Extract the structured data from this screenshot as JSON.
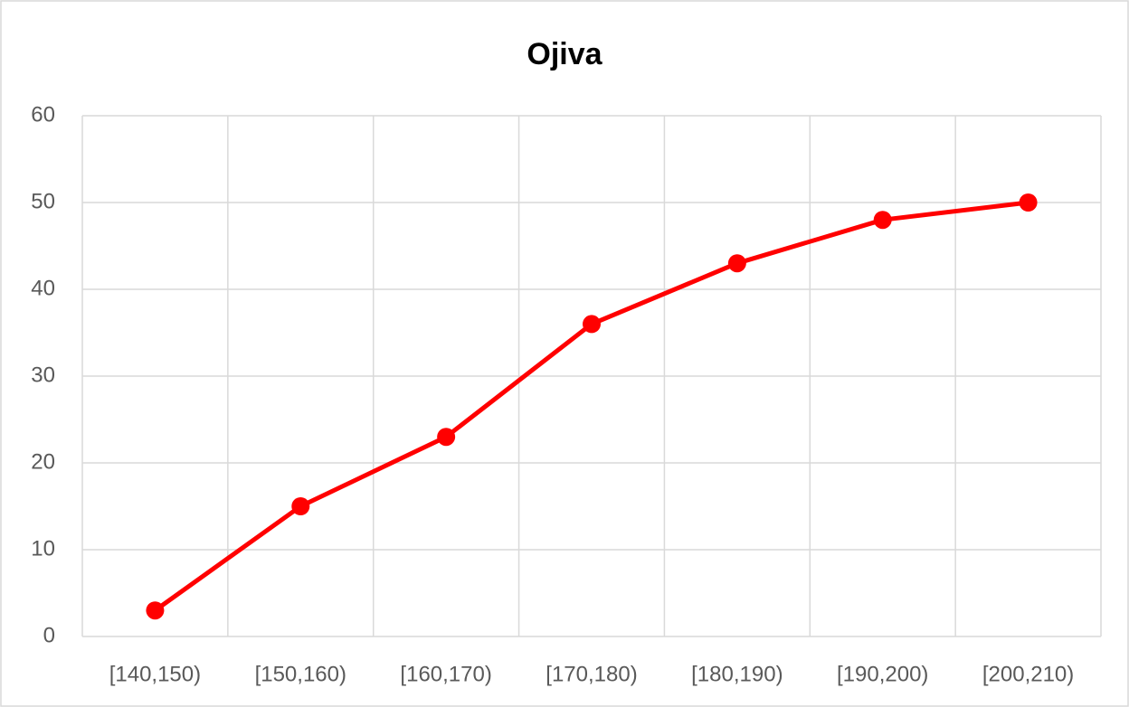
{
  "chart_data": {
    "type": "line",
    "title": "Ojiva",
    "categories": [
      "[140,150)",
      "[150,160)",
      "[160,170)",
      "[170,180)",
      "[180,190)",
      "[190,200)",
      "[200,210)"
    ],
    "series": [
      {
        "name": "Ojiva",
        "color": "#ff0000",
        "values": [
          3,
          15,
          23,
          36,
          43,
          48,
          50
        ]
      }
    ],
    "ylim": [
      0,
      60
    ],
    "yticks": [
      0,
      10,
      20,
      30,
      40,
      50,
      60
    ],
    "grid": true
  }
}
